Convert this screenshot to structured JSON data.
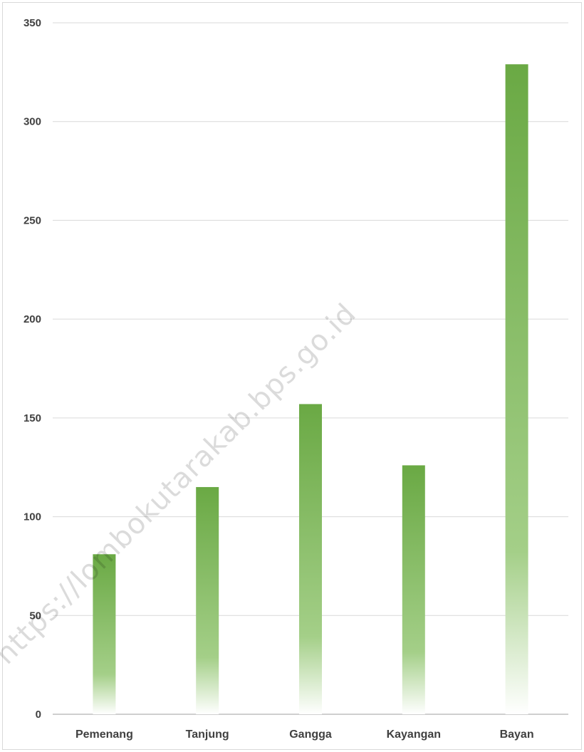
{
  "watermark": "https://lombokutarakab.bps.go.id",
  "chart_data": {
    "type": "bar",
    "categories": [
      "Pemenang",
      "Tanjung",
      "Gangga",
      "Kayangan",
      "Bayan"
    ],
    "values": [
      81,
      115,
      157,
      126,
      329
    ],
    "ylim": [
      0,
      350
    ],
    "yticks": [
      0,
      50,
      100,
      150,
      200,
      250,
      300,
      350
    ],
    "grid": true,
    "legend": "none",
    "colors": {
      "bar_top": "#6aa944",
      "bar_mid": "#a4cf88",
      "bar_bottom": "#ffffff",
      "grid": "#d9d9d9",
      "axis": "#bfbfbf",
      "text": "#404040"
    }
  }
}
